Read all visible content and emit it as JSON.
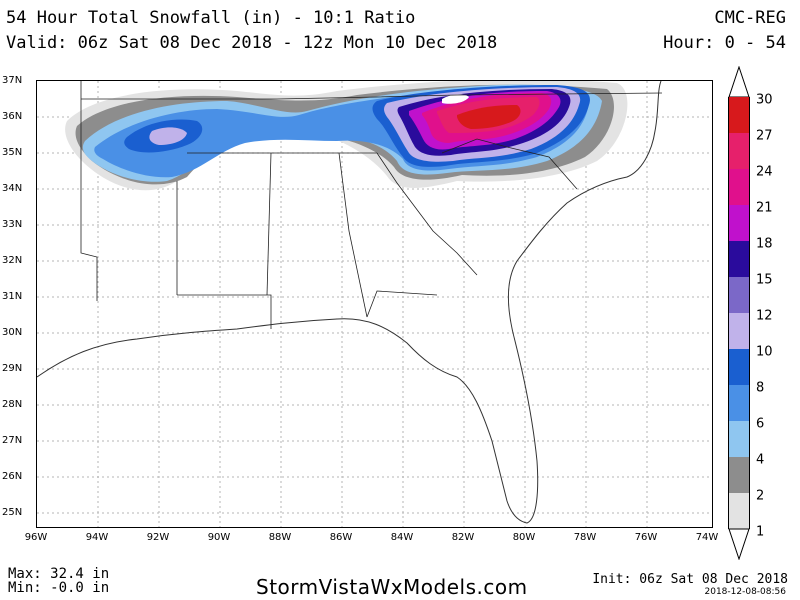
{
  "header": {
    "title": "54 Hour Total Snowfall (in) - 10:1 Ratio",
    "valid": "Valid: 06z Sat 08 Dec 2018 - 12z Mon 10 Dec 2018",
    "model": "CMC-REG",
    "hour": "Hour: 0 - 54"
  },
  "map": {
    "lat_labels": [
      "37N",
      "36N",
      "35N",
      "34N",
      "33N",
      "32N",
      "31N",
      "30N",
      "29N",
      "28N",
      "27N",
      "26N",
      "25N"
    ],
    "lon_labels": [
      "96W",
      "94W",
      "92W",
      "90W",
      "88W",
      "86W",
      "84W",
      "82W",
      "80W",
      "78W",
      "76W",
      "74W"
    ]
  },
  "legend": {
    "levels": [
      "30",
      "27",
      "24",
      "21",
      "18",
      "15",
      "12",
      "10",
      "8",
      "6",
      "4",
      "2",
      "1"
    ],
    "colors": [
      "#d7191c",
      "#e6206b",
      "#e0108c",
      "#c011cc",
      "#2a0b9c",
      "#7b68c8",
      "#c0b2ea",
      "#1a5fd0",
      "#4a90e6",
      "#8fc6f0",
      "#8d8d8d",
      "#e3e3e3"
    ]
  },
  "footer": {
    "max": "Max: 32.4 in",
    "min": "Min: -0.0 in",
    "site": "StormVistaWxModels.com",
    "init": "Init: 06z Sat 08 Dec 2018",
    "stamp": "2018-12-08-08:56"
  }
}
